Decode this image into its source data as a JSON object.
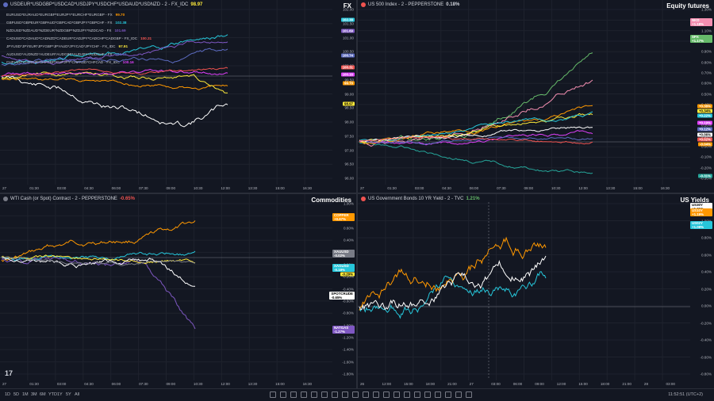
{
  "colors": {
    "bg": "#131722",
    "grid": "#1e222d",
    "white": "#ffffff",
    "purple": "#7e57c2",
    "cyan": "#26c6da",
    "orange": "#ff9800",
    "yellow": "#ffeb3b",
    "blue": "#5c6bc0",
    "pink": "#f48fb1",
    "green": "#66bb6a",
    "teal": "#26a69a",
    "red": "#ef5350",
    "magenta": "#e040fb"
  },
  "fx": {
    "header": "USDEUR*USDGBP*USDCAD*USDJPY*USDCHF*USDAUD*USDNZD - 2 - FX_IDC",
    "header_value": "98.97",
    "title": "FX",
    "legend": [
      {
        "label": "EURUSD*EURAUD*EURGBP*EURJPY*EURCHF*EURGBP - FX",
        "value": "99.70",
        "color": "#ff9800"
      },
      {
        "label": "GBPUSD*GBPEUR*GBPAUD*GBPCAD*GBPJPY*GBPCHF - FX",
        "value": "102.38",
        "color": "#26c6da"
      },
      {
        "label": "NZDUSD*NZDAUD*NZDEUR*NZDGBP*NZDJPY*NZDCAD - FX",
        "value": "101.69",
        "color": "#7e57c2"
      },
      {
        "label": "CADUSD*CADAUD*CADNZD*CADEUR*CADJPY*CADCHF*CADGBP - FX_IDC",
        "value": "100.31",
        "color": "#ef5350"
      },
      {
        "label": "JPYUSD*JPYEUR*JPYGBP*JPYAUD*JPYCAD*JPYCHF - FX_IDC",
        "value": "97.91",
        "color": "#ffeb3b"
      },
      {
        "label": "AUDUSD*AUDNZD*AUDEUR*AUDGBP*AUDJPY*AUDCHF - FX",
        "value": "100.74",
        "color": "#5c6bc0"
      },
      {
        "label": "CHFUSD*CHFEUR*CHFGBP*CHFJPY*CHFAUD*CHFCAD - FX_IDC",
        "value": "100.16",
        "color": "#e040fb"
      }
    ],
    "yticks": [
      "102.00",
      "101.50",
      "101.00",
      "100.50",
      "100.00",
      "99.50",
      "99.00",
      "98.50",
      "98.00",
      "97.50",
      "97.00",
      "96.50",
      "96.00"
    ],
    "tags": [
      {
        "text": "102.38",
        "color": "#26c6da"
      },
      {
        "text": "101.69",
        "color": "#7e57c2"
      },
      {
        "text": "100.74",
        "color": "#5c6bc0"
      },
      {
        "text": "100.31",
        "color": "#ef5350"
      },
      {
        "text": "99.70",
        "color": "#ff9800"
      },
      {
        "text": "100.16",
        "color": "#e040fb"
      },
      {
        "text": "98.97",
        "color": "#ffeb3b"
      }
    ],
    "xticks": [
      "27",
      "01:30",
      "03:00",
      "04:30",
      "06:00",
      "07:30",
      "09:00",
      "10:30",
      "12:00",
      "13:30",
      "15:00",
      "16:30"
    ]
  },
  "eq": {
    "header": "US 500 Index - 2 - PEPPERSTONE",
    "header_value": "0.18%",
    "title": "Equity futures",
    "yticks": [
      "1.30%",
      "1.20%",
      "1.10%",
      "1.00%",
      "0.90%",
      "0.80%",
      "0.70%",
      "0.60%",
      "0.50%",
      "0.40%",
      "0.30%",
      "0.20%",
      "0.10%",
      "0.00%",
      "-0.10%",
      "-0.20%",
      "-0.30%"
    ],
    "tags": [
      {
        "text": "NKD +1.18%",
        "color": "#f48fb1"
      },
      {
        "text": "SPX +1.17%",
        "color": "#66bb6a"
      },
      {
        "text": "+0.38%",
        "color": "#ff9800"
      },
      {
        "text": "+0.34%",
        "color": "#ffeb3b"
      },
      {
        "text": "+0.22%",
        "color": "#26c6da"
      },
      {
        "text": "+0.19%",
        "color": "#e040fb"
      },
      {
        "text": "+0.12%",
        "color": "#5c6bc0"
      },
      {
        "text": "+0.06%",
        "color": "#ffffff"
      },
      {
        "text": "+0.02%",
        "color": "#ef5350"
      },
      {
        "text": "-0.04%",
        "color": "#ff9800"
      },
      {
        "text": "-0.31%",
        "color": "#26a69a"
      }
    ],
    "xticks": [
      "27",
      "01:30",
      "03:00",
      "04:30",
      "06:00",
      "07:30",
      "09:00",
      "10:30",
      "12:00",
      "13:30",
      "15:00",
      "16:30"
    ]
  },
  "com": {
    "header": "WTI Cash (or Spot) Contract - 2 - PEPPERSTONE",
    "header_value": "-0.65%",
    "title": "Commodities",
    "yticks": [
      "1.00%",
      "0.80%",
      "0.60%",
      "0.40%",
      "0.20%",
      "0.00%",
      "-0.20%",
      "-0.40%",
      "-0.60%",
      "-0.80%",
      "-1.00%",
      "-1.20%",
      "-1.40%",
      "-1.60%",
      "-1.80%"
    ],
    "tags": [
      {
        "text": "COPPER +0.67%",
        "color": "#ff9800"
      },
      {
        "text": "XAUUSD -0.02%",
        "color": "#787b86"
      },
      {
        "text": "XAGUSD -0.18%",
        "color": "#26c6da"
      },
      {
        "text": "-0.29%",
        "color": "#ffeb3b"
      },
      {
        "text": "SPOTCRUDE -0.65%",
        "color": "#ffffff"
      },
      {
        "text": "NATGAS -1.27%",
        "color": "#7e57c2"
      }
    ],
    "xticks": [
      "27",
      "01:30",
      "03:00",
      "04:30",
      "06:00",
      "07:30",
      "09:00",
      "10:30",
      "12:00",
      "13:30",
      "15:00",
      "16:30"
    ],
    "logo": "17"
  },
  "yld": {
    "header": "US Government Bonds 10 YR Yield - 2 - TVC",
    "header_value": "1.21%",
    "title": "US Yields",
    "yticks": [
      "1.20%",
      "1.00%",
      "0.80%",
      "0.60%",
      "0.40%",
      "0.20%",
      "0.00%",
      "-0.20%",
      "-0.40%",
      "-0.60%",
      "-0.80%"
    ],
    "tags": [
      {
        "text": "US30Y +1.21%",
        "color": "#ffffff"
      },
      {
        "text": "US10Y +1.19%",
        "color": "#ff9800"
      },
      {
        "text": "US02Y +1.08%",
        "color": "#26c6da"
      }
    ],
    "xticks": [
      "26",
      "12:00",
      "15:00",
      "18:00",
      "21:00",
      "27",
      "03:00",
      "06:00",
      "09:00",
      "12:00",
      "15:00",
      "18:00",
      "21:00",
      "28",
      "03:00"
    ]
  },
  "bottom": {
    "ranges": [
      "1D",
      "5D",
      "1M",
      "3M",
      "6M",
      "YTD",
      "1Y",
      "5Y",
      "All"
    ],
    "clock": "11:52:51 (UTC+2)"
  }
}
